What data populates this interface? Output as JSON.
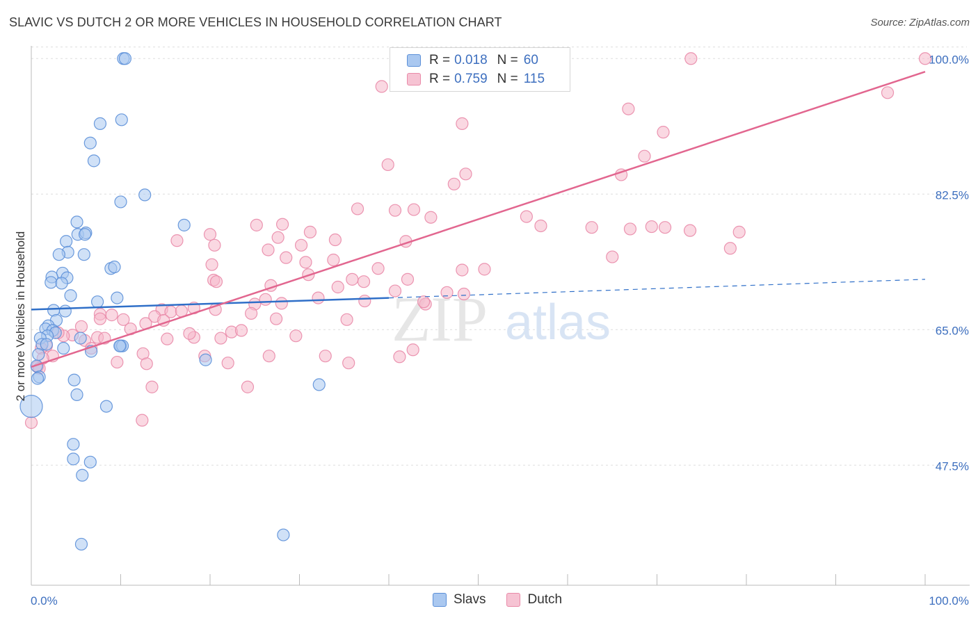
{
  "header": {
    "title": "SLAVIC VS DUTCH 2 OR MORE VEHICLES IN HOUSEHOLD CORRELATION CHART",
    "source": "Source: ZipAtlas.com"
  },
  "legend": {
    "series1": {
      "r_label": "R =",
      "r_value": "0.018",
      "n_label": "N =",
      "n_value": "60"
    },
    "series2": {
      "r_label": "R =",
      "r_value": "0.759",
      "n_label": "N =",
      "n_value": "115"
    }
  },
  "bottom_legend": {
    "series1": "Slavs",
    "series2": "Dutch"
  },
  "watermark": {
    "zip": "ZIP",
    "atlas": "atlas"
  },
  "chart_data": {
    "type": "scatter",
    "title": "SLAVIC VS DUTCH 2 OR MORE VEHICLES IN HOUSEHOLD CORRELATION CHART",
    "xlabel": "",
    "ylabel": "2 or more Vehicles in Household",
    "xlim": [
      0,
      100
    ],
    "ylim": [
      32,
      102
    ],
    "x_tick_labels": [
      "0.0%",
      "100.0%"
    ],
    "y_ticks": [
      47.5,
      65.0,
      82.5,
      100.0
    ],
    "y_tick_labels": [
      "47.5%",
      "65.0%",
      "82.5%",
      "100.0%"
    ],
    "grid": true,
    "legend_position": "top-center",
    "colors": {
      "slavs_fill": "#aac8f0",
      "slavs_stroke": "#5b8fd8",
      "slavs_line": "#2f6fc8",
      "dutch_fill": "#f6b8cb",
      "dutch_stroke": "#e98aa8",
      "dutch_line": "#e2668f",
      "tick_label": "#3d6fbf",
      "grid": "#dddddd"
    },
    "series": [
      {
        "name": "Slavs",
        "r": 0.018,
        "n": 60,
        "trend": {
          "x0": 0,
          "y0": 67.6,
          "x1": 40,
          "y1": 69.1,
          "dash_to_x": 100,
          "dash_to_y": 71.5
        },
        "points": [
          [
            10.3,
            100.0
          ],
          [
            10.5,
            100.0
          ],
          [
            7.7,
            91.6
          ],
          [
            10.1,
            92.1
          ],
          [
            6.6,
            89.1
          ],
          [
            7.0,
            86.8
          ],
          [
            12.7,
            82.4
          ],
          [
            10.0,
            81.5
          ],
          [
            5.1,
            78.9
          ],
          [
            17.1,
            78.5
          ],
          [
            5.2,
            77.3
          ],
          [
            6.1,
            77.5
          ],
          [
            6.0,
            77.3
          ],
          [
            3.9,
            76.4
          ],
          [
            4.1,
            75.0
          ],
          [
            3.1,
            74.7
          ],
          [
            5.9,
            74.7
          ],
          [
            8.9,
            72.9
          ],
          [
            9.3,
            73.1
          ],
          [
            3.5,
            72.3
          ],
          [
            2.3,
            71.8
          ],
          [
            4.0,
            71.7
          ],
          [
            2.2,
            71.1
          ],
          [
            3.4,
            71.0
          ],
          [
            4.4,
            69.4
          ],
          [
            9.6,
            69.1
          ],
          [
            7.4,
            68.6
          ],
          [
            3.8,
            67.4
          ],
          [
            2.5,
            67.5
          ],
          [
            2.8,
            66.2
          ],
          [
            1.9,
            65.5
          ],
          [
            1.6,
            65.1
          ],
          [
            2.4,
            64.9
          ],
          [
            2.7,
            64.6
          ],
          [
            1.8,
            64.2
          ],
          [
            1.0,
            63.9
          ],
          [
            1.2,
            63.1
          ],
          [
            1.7,
            63.1
          ],
          [
            3.6,
            62.6
          ],
          [
            6.7,
            62.2
          ],
          [
            10.0,
            62.9
          ],
          [
            10.2,
            62.9
          ],
          [
            19.5,
            61.1
          ],
          [
            5.5,
            63.9
          ],
          [
            0.8,
            61.8
          ],
          [
            0.6,
            60.3
          ],
          [
            0.9,
            58.9
          ],
          [
            0.7,
            58.7
          ],
          [
            4.8,
            58.5
          ],
          [
            32.2,
            57.9
          ],
          [
            5.1,
            56.6
          ],
          [
            8.4,
            55.1
          ],
          [
            0.0,
            55.1
          ],
          [
            4.7,
            50.2
          ],
          [
            4.7,
            48.3
          ],
          [
            6.6,
            47.9
          ],
          [
            5.7,
            46.2
          ],
          [
            28.2,
            38.5
          ],
          [
            5.6,
            37.3
          ],
          [
            9.9,
            62.9
          ]
        ],
        "sizes": {
          "0,55.1": "large"
        }
      },
      {
        "name": "Dutch",
        "r": 0.759,
        "n": 115,
        "trend": {
          "x0": 0,
          "y0": 60.2,
          "x1": 100,
          "y1": 98.3
        },
        "points": [
          [
            73.8,
            100.0
          ],
          [
            100.0,
            100.0
          ],
          [
            39.2,
            96.4
          ],
          [
            95.8,
            95.6
          ],
          [
            66.8,
            93.5
          ],
          [
            48.2,
            91.6
          ],
          [
            70.7,
            90.5
          ],
          [
            68.6,
            87.4
          ],
          [
            39.9,
            86.3
          ],
          [
            48.6,
            85.1
          ],
          [
            66.0,
            85.0
          ],
          [
            47.3,
            83.8
          ],
          [
            36.5,
            80.6
          ],
          [
            44.7,
            79.5
          ],
          [
            40.7,
            80.4
          ],
          [
            42.8,
            80.5
          ],
          [
            55.4,
            79.6
          ],
          [
            28.1,
            78.6
          ],
          [
            25.2,
            78.5
          ],
          [
            57.0,
            78.4
          ],
          [
            62.7,
            78.2
          ],
          [
            67.0,
            78.0
          ],
          [
            69.4,
            78.3
          ],
          [
            70.9,
            78.2
          ],
          [
            73.7,
            77.8
          ],
          [
            79.2,
            77.6
          ],
          [
            31.2,
            77.6
          ],
          [
            20.0,
            77.3
          ],
          [
            27.6,
            76.9
          ],
          [
            34.0,
            76.6
          ],
          [
            16.3,
            76.5
          ],
          [
            41.9,
            76.4
          ],
          [
            30.2,
            75.9
          ],
          [
            20.5,
            75.9
          ],
          [
            78.2,
            75.5
          ],
          [
            26.5,
            75.3
          ],
          [
            28.5,
            74.3
          ],
          [
            33.8,
            74.0
          ],
          [
            65.0,
            74.4
          ],
          [
            30.7,
            73.7
          ],
          [
            20.2,
            73.4
          ],
          [
            38.8,
            72.9
          ],
          [
            50.7,
            72.8
          ],
          [
            48.2,
            72.7
          ],
          [
            31.0,
            72.1
          ],
          [
            35.9,
            71.5
          ],
          [
            42.1,
            71.5
          ],
          [
            20.4,
            71.4
          ],
          [
            37.2,
            71.2
          ],
          [
            20.7,
            71.2
          ],
          [
            26.8,
            70.7
          ],
          [
            34.3,
            70.5
          ],
          [
            40.7,
            70.0
          ],
          [
            28.0,
            68.4
          ],
          [
            46.5,
            69.8
          ],
          [
            48.4,
            69.6
          ],
          [
            32.1,
            69.1
          ],
          [
            26.2,
            68.9
          ],
          [
            37.3,
            68.7
          ],
          [
            44.1,
            68.3
          ],
          [
            25.0,
            68.3
          ],
          [
            18.2,
            67.8
          ],
          [
            14.6,
            67.6
          ],
          [
            20.6,
            67.6
          ],
          [
            15.6,
            67.3
          ],
          [
            16.8,
            67.4
          ],
          [
            7.7,
            67.0
          ],
          [
            9.0,
            66.9
          ],
          [
            13.8,
            66.7
          ],
          [
            27.4,
            66.4
          ],
          [
            35.3,
            66.3
          ],
          [
            14.8,
            66.2
          ],
          [
            7.7,
            66.4
          ],
          [
            10.3,
            66.3
          ],
          [
            12.8,
            65.8
          ],
          [
            5.6,
            65.4
          ],
          [
            11.1,
            65.1
          ],
          [
            22.4,
            64.7
          ],
          [
            23.5,
            64.9
          ],
          [
            18.2,
            64.0
          ],
          [
            17.7,
            64.5
          ],
          [
            7.4,
            64.0
          ],
          [
            8.2,
            63.9
          ],
          [
            6.0,
            63.6
          ],
          [
            4.6,
            64.3
          ],
          [
            3.6,
            64.2
          ],
          [
            3.0,
            64.6
          ],
          [
            21.2,
            63.9
          ],
          [
            15.2,
            63.8
          ],
          [
            29.6,
            64.2
          ],
          [
            1.7,
            62.9
          ],
          [
            1.1,
            62.6
          ],
          [
            6.7,
            62.6
          ],
          [
            12.5,
            61.9
          ],
          [
            19.4,
            61.6
          ],
          [
            22.0,
            60.7
          ],
          [
            26.6,
            61.6
          ],
          [
            41.2,
            61.5
          ],
          [
            35.5,
            60.7
          ],
          [
            32.9,
            61.6
          ],
          [
            2.4,
            61.6
          ],
          [
            0.7,
            60.2
          ],
          [
            9.6,
            60.8
          ],
          [
            12.9,
            60.6
          ],
          [
            24.2,
            57.6
          ],
          [
            13.5,
            57.6
          ],
          [
            12.4,
            53.3
          ],
          [
            0.0,
            53.0
          ],
          [
            1.3,
            61.3
          ],
          [
            0.9,
            60.0
          ],
          [
            42.7,
            62.4
          ],
          [
            43.9,
            68.6
          ],
          [
            24.6,
            67.1
          ]
        ],
        "sizes": {
          "0,53.0": "large"
        }
      }
    ]
  }
}
